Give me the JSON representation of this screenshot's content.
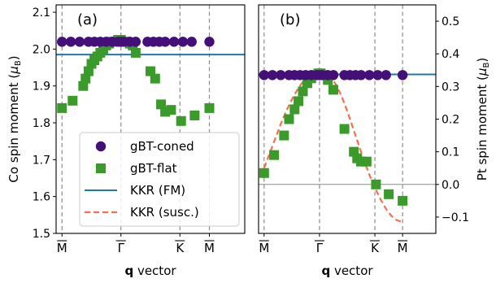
{
  "chart_data": [
    {
      "type": "scatter",
      "panel_label": "(a)",
      "xlabel_bold": "q",
      "xlabel_rest": " vector",
      "ylabel": "Co spin moment (",
      "ylabel_unit_main": "μ",
      "ylabel_unit_sub": "B",
      "ylabel_close": ")",
      "ylim": [
        1.5,
        2.12
      ],
      "yticks": [
        "1.5",
        "1.6",
        "1.7",
        "1.8",
        "1.9",
        "2.0",
        "2.1"
      ],
      "ytick_values": [
        1.5,
        1.6,
        1.7,
        1.8,
        1.9,
        2.0,
        2.1
      ],
      "xlim": [
        -0.1,
        3.1
      ],
      "xticks": [
        "M",
        "Γ",
        "K",
        "M"
      ],
      "xtick_values": [
        0,
        1,
        2,
        2.5
      ],
      "vlines": [
        0,
        1,
        2,
        2.5
      ],
      "series": [
        {
          "name": "gBT-coned",
          "marker": "circle",
          "color": "#440f78",
          "x": [
            0,
            0.15,
            0.3,
            0.45,
            0.55,
            0.65,
            0.75,
            0.85,
            0.95,
            1.0,
            1.05,
            1.15,
            1.25,
            1.45,
            1.55,
            1.65,
            1.75,
            1.9,
            2.05,
            2.2,
            2.5
          ],
          "y": [
            2.02,
            2.02,
            2.02,
            2.02,
            2.02,
            2.02,
            2.02,
            2.02,
            2.02,
            2.02,
            2.02,
            2.02,
            2.02,
            2.02,
            2.02,
            2.02,
            2.02,
            2.02,
            2.02,
            2.02,
            2.02
          ]
        },
        {
          "name": "gBT-flat",
          "marker": "square",
          "color": "#3a9a2a",
          "x": [
            0,
            0.18,
            0.36,
            0.4,
            0.45,
            0.5,
            0.55,
            0.6,
            0.65,
            0.7,
            0.75,
            0.8,
            0.85,
            0.9,
            0.95,
            1.0,
            1.05,
            1.1,
            1.15,
            1.2,
            1.25,
            1.5,
            1.58,
            1.68,
            1.75,
            1.85,
            2.02,
            2.25,
            2.5
          ],
          "y": [
            1.84,
            1.86,
            1.9,
            1.92,
            1.94,
            1.96,
            1.97,
            1.98,
            1.99,
            2.0,
            2.01,
            2.015,
            2.02,
            2.02,
            2.025,
            2.025,
            2.02,
            2.02,
            2.015,
            2.01,
            1.99,
            1.94,
            1.92,
            1.85,
            1.83,
            1.835,
            1.805,
            1.82,
            1.84
          ]
        },
        {
          "name": "KKR (FM)",
          "type": "hline",
          "color": "#1f77b4",
          "value": 1.985
        }
      ],
      "legend": [
        {
          "label": "gBT-coned",
          "kind": "circle",
          "color": "#440f78"
        },
        {
          "label": "gBT-flat",
          "kind": "square",
          "color": "#3a9a2a"
        },
        {
          "label": "KKR (FM)",
          "kind": "line",
          "color": "#1f77b4"
        },
        {
          "label": "KKR (susc.)",
          "kind": "dashed",
          "color": "#f56f4d"
        }
      ],
      "legend_placement": "lower right"
    },
    {
      "type": "scatter",
      "panel_label": "(b)",
      "xlabel_bold": "q",
      "xlabel_rest": " vector",
      "ylabel": "Pt spin moment (",
      "ylabel_unit_main": "μ",
      "ylabel_unit_sub": "B",
      "ylabel_close": ")",
      "ylim": [
        -0.15,
        0.55
      ],
      "yticks": [
        "−0.1",
        "0.0",
        "0.1",
        "0.2",
        "0.3",
        "0.4",
        "0.5"
      ],
      "ytick_values": [
        -0.1,
        0.0,
        0.1,
        0.2,
        0.3,
        0.4,
        0.5
      ],
      "xlim": [
        -0.1,
        3.1
      ],
      "xticks": [
        "M",
        "Γ",
        "K",
        "M"
      ],
      "xtick_values": [
        0,
        1,
        2,
        2.5
      ],
      "vlines": [
        0,
        1,
        2,
        2.5
      ],
      "zero_line": 0.0,
      "series": [
        {
          "name": "gBT-coned",
          "marker": "circle",
          "color": "#440f78",
          "x": [
            0,
            0.15,
            0.3,
            0.45,
            0.55,
            0.65,
            0.75,
            0.85,
            0.95,
            1.0,
            1.05,
            1.15,
            1.25,
            1.45,
            1.55,
            1.65,
            1.75,
            1.9,
            2.05,
            2.2,
            2.5
          ],
          "y": [
            0.335,
            0.335,
            0.335,
            0.335,
            0.335,
            0.335,
            0.335,
            0.335,
            0.335,
            0.335,
            0.335,
            0.335,
            0.335,
            0.335,
            0.335,
            0.335,
            0.335,
            0.335,
            0.335,
            0.335,
            0.335
          ]
        },
        {
          "name": "gBT-flat",
          "marker": "square",
          "color": "#3a9a2a",
          "x": [
            0,
            0.18,
            0.36,
            0.45,
            0.55,
            0.62,
            0.7,
            0.78,
            0.85,
            0.92,
            0.98,
            1.02,
            1.08,
            1.15,
            1.25,
            1.45,
            1.62,
            1.68,
            1.75,
            1.85,
            2.02,
            2.25,
            2.5
          ],
          "y": [
            0.035,
            0.09,
            0.15,
            0.2,
            0.23,
            0.255,
            0.285,
            0.31,
            0.325,
            0.335,
            0.34,
            0.34,
            0.335,
            0.32,
            0.29,
            0.17,
            0.1,
            0.08,
            0.07,
            0.07,
            0.0,
            -0.03,
            -0.05
          ]
        },
        {
          "name": "KKR (FM)",
          "type": "hline",
          "color": "#1f77b4",
          "value": 0.337
        },
        {
          "name": "KKR (susc.)",
          "type": "curve",
          "color": "#f56f4d",
          "x": [
            0,
            0.1,
            0.2,
            0.3,
            0.4,
            0.5,
            0.6,
            0.7,
            0.8,
            0.9,
            1.0,
            1.1,
            1.2,
            1.3,
            1.4,
            1.5,
            1.6,
            1.7,
            1.8,
            1.9,
            2.0,
            2.1,
            2.2,
            2.3,
            2.4,
            2.5
          ],
          "y": [
            0.05,
            0.095,
            0.14,
            0.185,
            0.225,
            0.26,
            0.29,
            0.315,
            0.333,
            0.344,
            0.348,
            0.343,
            0.33,
            0.305,
            0.27,
            0.225,
            0.175,
            0.125,
            0.075,
            0.03,
            -0.01,
            -0.045,
            -0.075,
            -0.097,
            -0.11,
            -0.115
          ]
        }
      ]
    }
  ]
}
